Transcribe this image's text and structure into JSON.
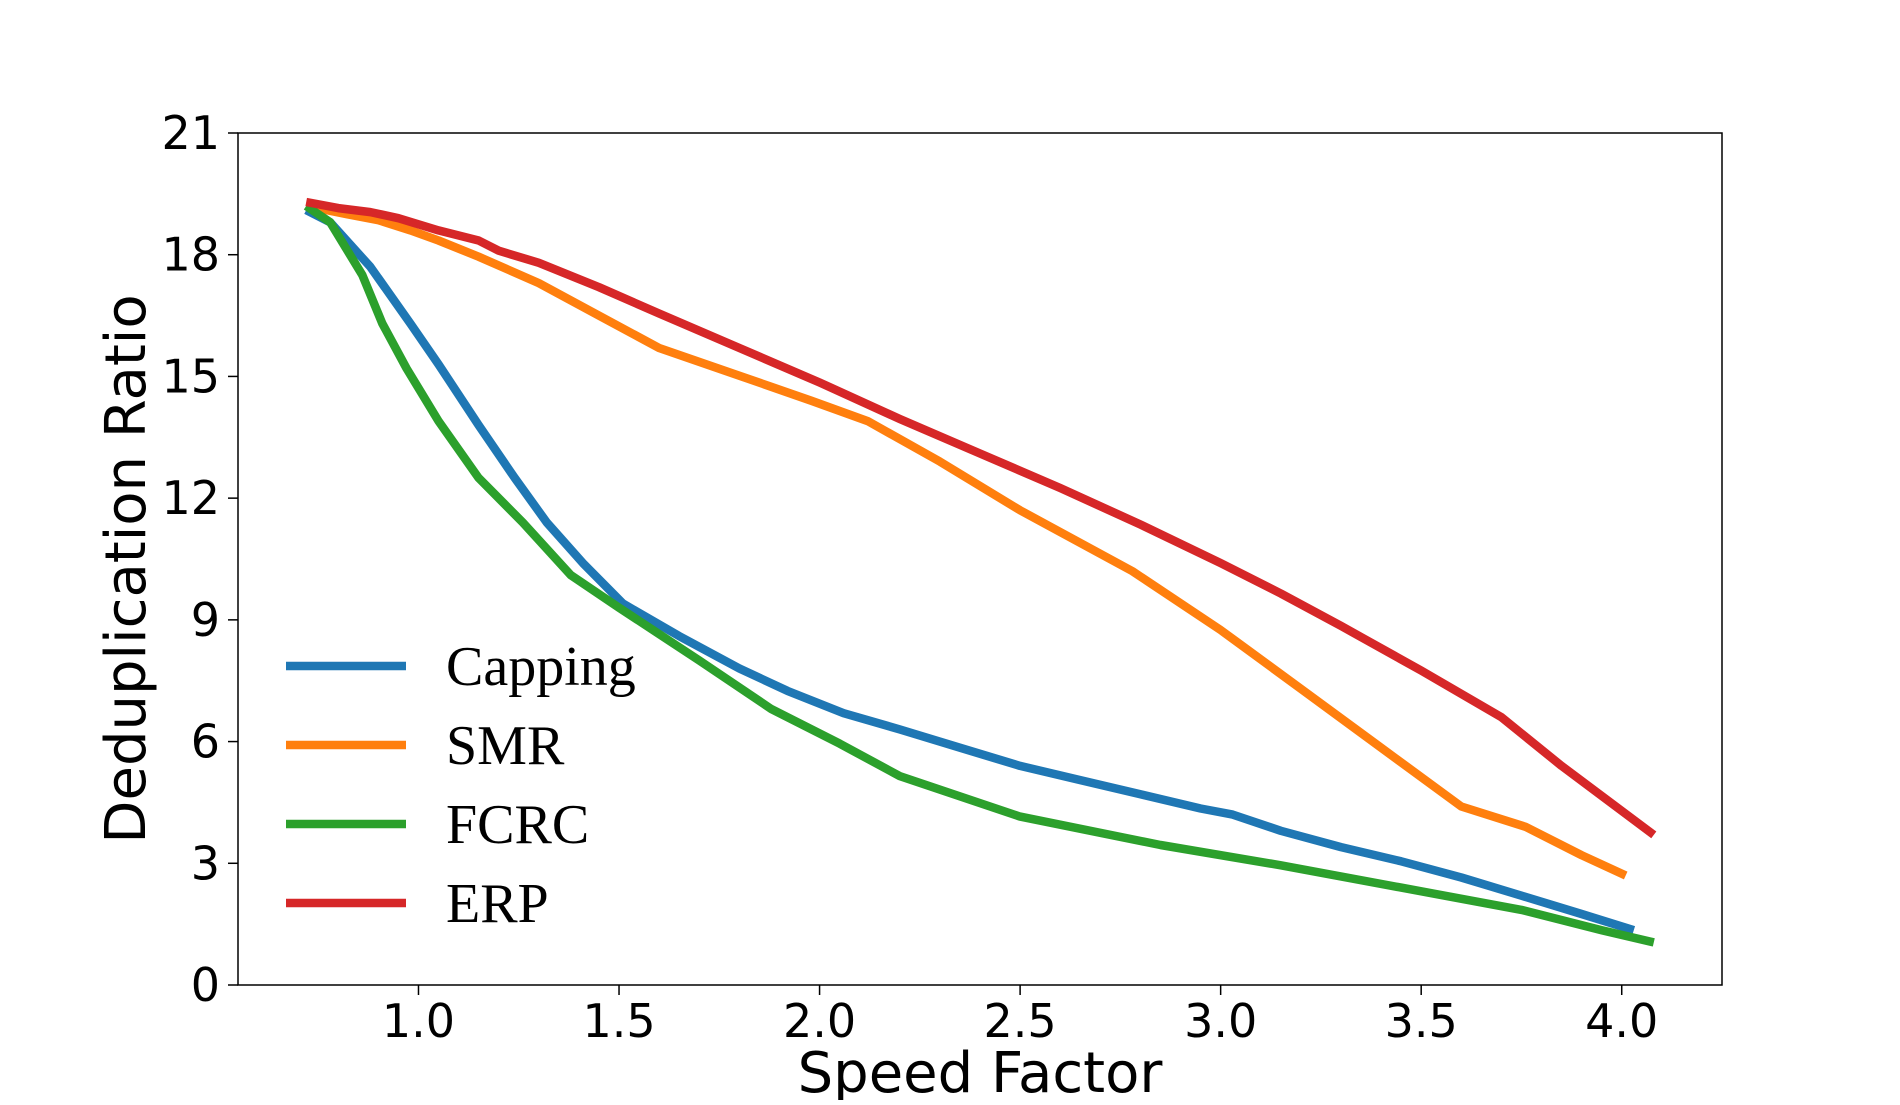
{
  "chart_data": {
    "type": "line",
    "xlabel": "Speed Factor",
    "ylabel": "Deduplication Ratio",
    "title": "",
    "xlim": [
      0.55,
      4.25
    ],
    "ylim": [
      0,
      21
    ],
    "xticks": [
      1.0,
      1.5,
      2.0,
      2.5,
      3.0,
      3.5,
      4.0
    ],
    "xtick_labels": [
      "1.0",
      "1.5",
      "2.0",
      "2.5",
      "3.0",
      "3.5",
      "4.0"
    ],
    "yticks": [
      0,
      3,
      6,
      9,
      12,
      15,
      18,
      21
    ],
    "ytick_labels": [
      "0",
      "3",
      "6",
      "9",
      "12",
      "15",
      "18",
      "21"
    ],
    "grid": false,
    "legend_position": "lower-left",
    "series": [
      {
        "name": "Capping",
        "color": "#1f77b4",
        "x": [
          0.72,
          0.78,
          0.88,
          0.98,
          1.05,
          1.15,
          1.24,
          1.32,
          1.41,
          1.51,
          1.65,
          1.8,
          1.92,
          2.06,
          2.2,
          2.35,
          2.5,
          2.65,
          2.8,
          2.95,
          3.03,
          3.15,
          3.3,
          3.45,
          3.6,
          3.75,
          3.9,
          4.03
        ],
        "y": [
          19.1,
          18.8,
          17.7,
          16.3,
          15.3,
          13.8,
          12.5,
          11.4,
          10.4,
          9.4,
          8.6,
          7.8,
          7.25,
          6.7,
          6.3,
          5.85,
          5.4,
          5.05,
          4.7,
          4.35,
          4.2,
          3.8,
          3.4,
          3.05,
          2.65,
          2.2,
          1.75,
          1.35
        ]
      },
      {
        "name": "SMR",
        "color": "#ff7f0e",
        "x": [
          0.72,
          0.82,
          0.9,
          0.98,
          1.05,
          1.15,
          1.3,
          1.45,
          1.6,
          1.82,
          1.98,
          2.12,
          2.3,
          2.5,
          2.78,
          3.0,
          3.2,
          3.4,
          3.6,
          3.76,
          3.9,
          4.01
        ],
        "y": [
          19.2,
          19.0,
          18.85,
          18.6,
          18.35,
          17.95,
          17.3,
          16.5,
          15.7,
          14.95,
          14.4,
          13.9,
          12.9,
          11.7,
          10.2,
          8.75,
          7.3,
          5.85,
          4.4,
          3.9,
          3.2,
          2.7
        ]
      },
      {
        "name": "FCRC",
        "color": "#2ca02c",
        "x": [
          0.72,
          0.78,
          0.86,
          0.91,
          0.97,
          1.05,
          1.15,
          1.26,
          1.38,
          1.5,
          1.7,
          1.88,
          2.05,
          2.2,
          2.5,
          2.85,
          3.15,
          3.45,
          3.75,
          3.95,
          4.08
        ],
        "y": [
          19.2,
          18.8,
          17.5,
          16.3,
          15.2,
          13.9,
          12.5,
          11.4,
          10.1,
          9.3,
          8.0,
          6.8,
          5.95,
          5.15,
          4.15,
          3.45,
          2.95,
          2.4,
          1.85,
          1.35,
          1.05
        ]
      },
      {
        "name": "ERP",
        "color": "#d62728",
        "x": [
          0.72,
          0.8,
          0.88,
          0.95,
          1.05,
          1.15,
          1.2,
          1.3,
          1.45,
          1.6,
          1.8,
          2.0,
          2.2,
          2.4,
          2.6,
          2.8,
          3.0,
          3.15,
          3.3,
          3.5,
          3.7,
          3.85,
          4.08
        ],
        "y": [
          19.3,
          19.15,
          19.05,
          18.9,
          18.6,
          18.35,
          18.1,
          17.8,
          17.2,
          16.55,
          15.7,
          14.85,
          13.95,
          13.1,
          12.25,
          11.35,
          10.4,
          9.65,
          8.85,
          7.75,
          6.6,
          5.4,
          3.7
        ]
      }
    ]
  }
}
